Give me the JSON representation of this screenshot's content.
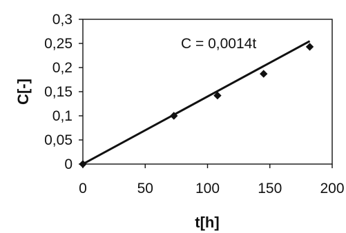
{
  "chart_data": {
    "type": "scatter",
    "xlabel": "t[h]",
    "ylabel": "C[-]",
    "xlim": [
      0,
      200
    ],
    "ylim": [
      0,
      0.3
    ],
    "x_ticks": [
      "0",
      "50",
      "100",
      "150",
      "200"
    ],
    "y_ticks": [
      "0",
      "0,05",
      "0,1",
      "0,15",
      "0,2",
      "0,25",
      "0,3"
    ],
    "x_tick_values": [
      0,
      50,
      100,
      150,
      200
    ],
    "y_tick_values": [
      0,
      0.05,
      0.1,
      0.15,
      0.2,
      0.25,
      0.3
    ],
    "grid": false,
    "legend": "none",
    "series": [
      {
        "points": [
          {
            "x": 0,
            "y": 0
          },
          {
            "x": 73,
            "y": 0.1
          },
          {
            "x": 108,
            "y": 0.142
          },
          {
            "x": 145,
            "y": 0.187
          },
          {
            "x": 182,
            "y": 0.243
          }
        ]
      }
    ],
    "trendline": {
      "slope": 0.0014,
      "intercept": 0,
      "x_range": [
        0,
        182
      ],
      "label": "C = 0,0014t"
    },
    "colors": {
      "line": "#111111",
      "marker": "#111111",
      "axis": "#111111"
    }
  }
}
